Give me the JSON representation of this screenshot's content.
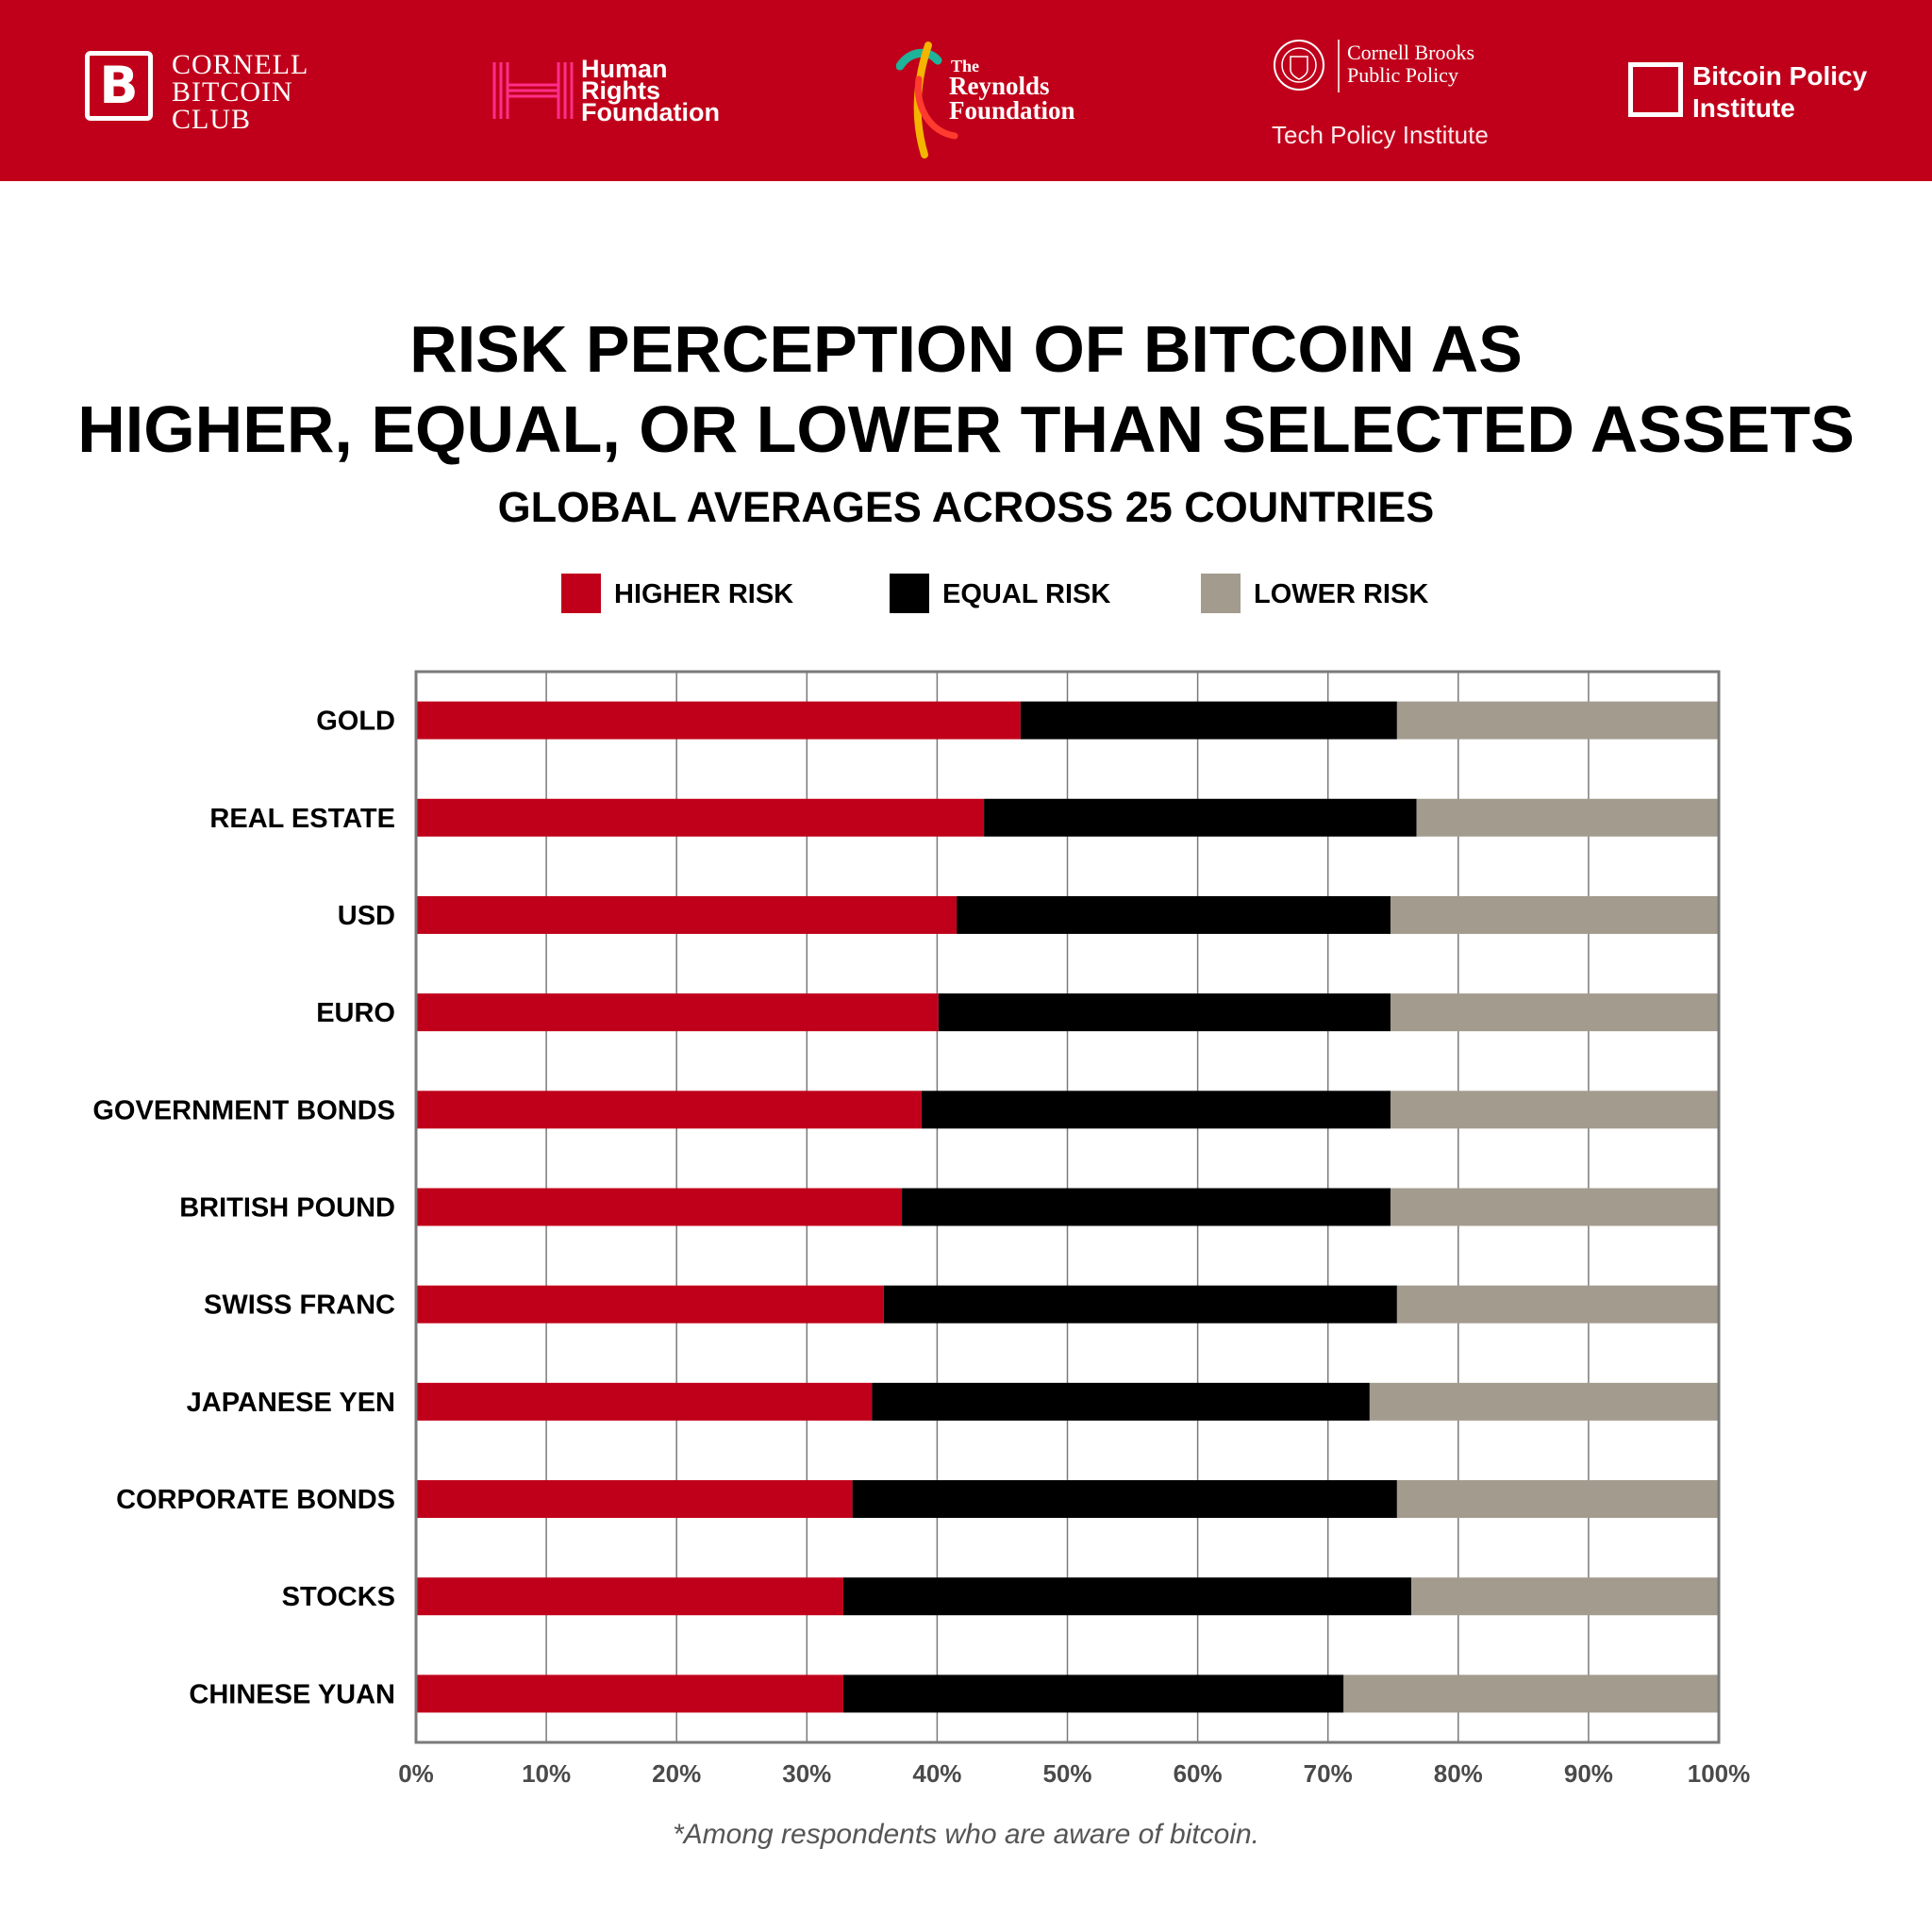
{
  "header": {
    "background": "#c0001a",
    "logos": {
      "cornell_bitcoin_club": {
        "icon": "bitcoin-b-icon",
        "mark": "B",
        "name": "CORNELL\nBITCOIN\nCLUB"
      },
      "human_rights_foundation": {
        "icon": "hrf-h-icon",
        "name": "Human\nRights\nFoundation"
      },
      "reynolds_foundation": {
        "icon": "ribbon-icon",
        "the": "The",
        "name": "Reynolds\nFoundation"
      },
      "cornell_brooks": {
        "icon": "cornell-seal-icon",
        "name": "Cornell Brooks\nPublic Policy",
        "sub": "Tech Policy Institute"
      },
      "bitcoin_policy_institute": {
        "icon": "square-outline-icon",
        "name": "Bitcoin Policy\nInstitute"
      }
    }
  },
  "title": {
    "line1": "RISK PERCEPTION OF BITCOIN AS",
    "line2": "HIGHER, EQUAL, OR LOWER THAN SELECTED ASSETS",
    "subtitle": "GLOBAL AVERAGES ACROSS 25 COUNTRIES"
  },
  "legend": {
    "higher": {
      "label": "HIGHER RISK",
      "color": "#c0001a"
    },
    "equal": {
      "label": "EQUAL RISK",
      "color": "#000000"
    },
    "lower": {
      "label": "LOWER RISK",
      "color": "#a39b8e"
    }
  },
  "chart_data": {
    "type": "bar",
    "orientation": "horizontal",
    "stacked": true,
    "title": "RISK PERCEPTION OF BITCOIN AS HIGHER, EQUAL, OR LOWER THAN SELECTED ASSETS",
    "subtitle": "GLOBAL AVERAGES ACROSS 25 COUNTRIES",
    "categories": [
      "GOLD",
      "REAL ESTATE",
      "USD",
      "EURO",
      "GOVERNMENT BONDS",
      "BRITISH POUND",
      "SWISS FRANC",
      "JAPANESE YEN",
      "CORPORATE BONDS",
      "STOCKS",
      "CHINESE YUAN"
    ],
    "series": [
      {
        "name": "HIGHER RISK",
        "color": "#c0001a",
        "values": [
          46.4,
          43.6,
          41.5,
          40.1,
          38.8,
          37.3,
          35.9,
          35.0,
          33.5,
          32.8,
          32.8
        ]
      },
      {
        "name": "EQUAL RISK",
        "color": "#000000",
        "values": [
          28.9,
          33.2,
          33.3,
          34.7,
          36.0,
          37.5,
          39.4,
          38.2,
          41.8,
          43.6,
          38.4
        ]
      },
      {
        "name": "LOWER RISK",
        "color": "#a39b8e",
        "values": [
          24.7,
          23.2,
          25.2,
          25.2,
          25.2,
          25.2,
          24.7,
          26.8,
          24.7,
          23.6,
          28.8
        ]
      }
    ],
    "xlim": [
      0,
      100
    ],
    "xticks": [
      "0%",
      "10%",
      "20%",
      "30%",
      "40%",
      "50%",
      "60%",
      "70%",
      "80%",
      "90%",
      "100%"
    ],
    "grid": true,
    "legend_position": "top"
  },
  "footnote": "*Among respondents who are aware of bitcoin."
}
